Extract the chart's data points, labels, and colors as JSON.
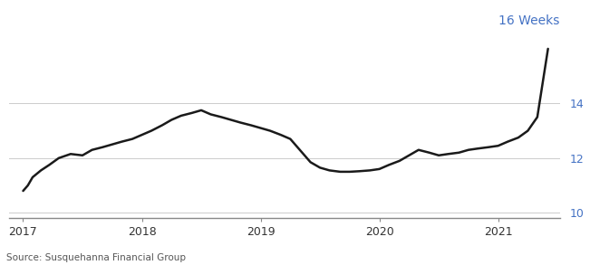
{
  "title_annotation": "16 Weeks",
  "source_text": "Source: Susquehanna Financial Group",
  "line_color": "#1a1a1a",
  "background_color": "#ffffff",
  "grid_color": "#cccccc",
  "axis_label_color": "#4472c4",
  "ytick_label_color": "#4472c4",
  "annotation_color": "#4472c4",
  "ylim": [
    9.8,
    16.8
  ],
  "yticks": [
    10,
    12,
    14
  ],
  "xlim_start": 2016.88,
  "xlim_end": 2021.52,
  "xtick_labels": [
    "2017",
    "2018",
    "2019",
    "2020",
    "2021"
  ],
  "xtick_positions": [
    2017,
    2018,
    2019,
    2020,
    2021
  ],
  "x": [
    2017.0,
    2017.04,
    2017.08,
    2017.15,
    2017.22,
    2017.3,
    2017.4,
    2017.5,
    2017.58,
    2017.67,
    2017.75,
    2017.83,
    2017.92,
    2018.0,
    2018.08,
    2018.17,
    2018.25,
    2018.33,
    2018.42,
    2018.5,
    2018.58,
    2018.67,
    2018.75,
    2018.83,
    2018.92,
    2019.0,
    2019.08,
    2019.17,
    2019.25,
    2019.33,
    2019.42,
    2019.5,
    2019.58,
    2019.67,
    2019.75,
    2019.83,
    2019.92,
    2020.0,
    2020.08,
    2020.17,
    2020.25,
    2020.33,
    2020.42,
    2020.5,
    2020.58,
    2020.67,
    2020.75,
    2020.83,
    2020.92,
    2021.0,
    2021.08,
    2021.17,
    2021.25,
    2021.33,
    2021.42
  ],
  "y": [
    10.8,
    11.0,
    11.3,
    11.55,
    11.75,
    12.0,
    12.15,
    12.1,
    12.3,
    12.4,
    12.5,
    12.6,
    12.7,
    12.85,
    13.0,
    13.2,
    13.4,
    13.55,
    13.65,
    13.75,
    13.6,
    13.5,
    13.4,
    13.3,
    13.2,
    13.1,
    13.0,
    12.85,
    12.7,
    12.3,
    11.85,
    11.65,
    11.55,
    11.5,
    11.5,
    11.52,
    11.55,
    11.6,
    11.75,
    11.9,
    12.1,
    12.3,
    12.2,
    12.1,
    12.15,
    12.2,
    12.3,
    12.35,
    12.4,
    12.45,
    12.6,
    12.75,
    13.0,
    13.5,
    16.0
  ]
}
